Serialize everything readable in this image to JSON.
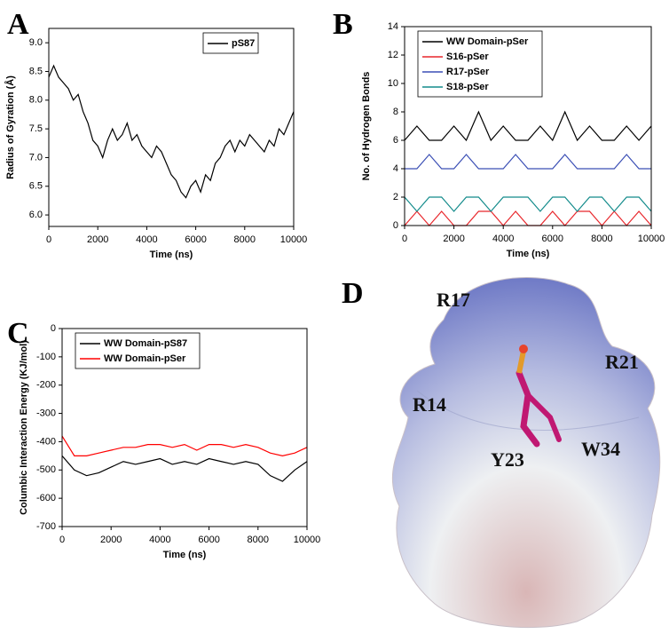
{
  "chart_data": [
    {
      "type": "line",
      "panel_label": "A",
      "xlabel": "Time (ns)",
      "ylabel": "Radius of Gyration (Å)",
      "xlim": [
        0,
        10000
      ],
      "xticks": [
        0,
        2000,
        4000,
        6000,
        8000,
        10000
      ],
      "ylim": [
        5.8,
        9.25
      ],
      "yticks": [
        {
          "value": 6,
          "label": "6.0"
        },
        6.5,
        {
          "value": 7,
          "label": "7.0"
        },
        7.5,
        {
          "value": 8,
          "label": "8.0"
        },
        8.5,
        {
          "value": 9,
          "label": "9.0"
        }
      ],
      "legend": "top-right",
      "x": [
        0,
        200,
        400,
        600,
        800,
        1000,
        1200,
        1400,
        1600,
        1800,
        2000,
        2200,
        2400,
        2600,
        2800,
        3000,
        3200,
        3400,
        3600,
        3800,
        4000,
        4200,
        4400,
        4600,
        4800,
        5000,
        5200,
        5400,
        5600,
        5800,
        6000,
        6200,
        6400,
        6600,
        6800,
        7000,
        7200,
        7400,
        7600,
        7800,
        8000,
        8200,
        8400,
        8600,
        8800,
        9000,
        9200,
        9400,
        9600,
        9800,
        10000
      ],
      "series": [
        {
          "name": "pS87",
          "color": "#000000",
          "values": [
            8.4,
            8.6,
            8.4,
            8.3,
            8.2,
            8.0,
            8.1,
            7.8,
            7.6,
            7.3,
            7.2,
            7.0,
            7.3,
            7.5,
            7.3,
            7.4,
            7.6,
            7.3,
            7.4,
            7.2,
            7.1,
            7.0,
            7.2,
            7.1,
            6.9,
            6.7,
            6.6,
            6.4,
            6.3,
            6.5,
            6.6,
            6.4,
            6.7,
            6.6,
            6.9,
            7.0,
            7.2,
            7.3,
            7.1,
            7.3,
            7.2,
            7.4,
            7.3,
            7.2,
            7.1,
            7.3,
            7.2,
            7.5,
            7.4,
            7.6,
            7.8
          ]
        }
      ]
    },
    {
      "type": "line",
      "panel_label": "B",
      "xlabel": "Time (ns)",
      "ylabel": "No. of Hydrogen Bonds",
      "xlim": [
        0,
        10000
      ],
      "xticks": [
        0,
        2000,
        4000,
        6000,
        8000,
        10000
      ],
      "ylim": [
        0,
        14
      ],
      "yticks": [
        0,
        2,
        4,
        6,
        8,
        10,
        12,
        14
      ],
      "legend": "top-left",
      "x": [
        0,
        500,
        1000,
        1500,
        2000,
        2500,
        3000,
        3500,
        4000,
        4500,
        5000,
        5500,
        6000,
        6500,
        7000,
        7500,
        8000,
        8500,
        9000,
        9500,
        10000
      ],
      "series": [
        {
          "name": "WW Domain-pSer",
          "color": "#000000",
          "values": [
            6,
            7,
            6,
            6,
            7,
            6,
            8,
            6,
            7,
            6,
            6,
            7,
            6,
            8,
            6,
            7,
            6,
            6,
            7,
            6,
            7
          ]
        },
        {
          "name": "S16-pSer",
          "color": "#e8262b",
          "values": [
            0,
            1,
            0,
            1,
            0,
            0,
            1,
            1,
            0,
            1,
            0,
            0,
            1,
            0,
            1,
            1,
            0,
            1,
            0,
            1,
            0
          ]
        },
        {
          "name": "R17-pSer",
          "color": "#3b4fb5",
          "values": [
            4,
            4,
            5,
            4,
            4,
            5,
            4,
            4,
            4,
            5,
            4,
            4,
            4,
            5,
            4,
            4,
            4,
            4,
            5,
            4,
            4
          ]
        },
        {
          "name": "S18-pSer",
          "color": "#138b8b",
          "values": [
            2,
            1,
            2,
            2,
            1,
            2,
            2,
            1,
            2,
            2,
            2,
            1,
            2,
            2,
            1,
            2,
            2,
            1,
            2,
            2,
            1
          ]
        }
      ]
    },
    {
      "type": "line",
      "panel_label": "C",
      "xlabel": "Time (ns)",
      "ylabel": "Columbic Interaction Energy (KJ/mol)",
      "xlim": [
        0,
        10000
      ],
      "xticks": [
        0,
        2000,
        4000,
        6000,
        8000,
        10000
      ],
      "ylim": [
        -700,
        0
      ],
      "yticks": [
        -700,
        -600,
        -500,
        -400,
        -300,
        -200,
        -100,
        0
      ],
      "legend": "top-left",
      "x": [
        0,
        500,
        1000,
        1500,
        2000,
        2500,
        3000,
        3500,
        4000,
        4500,
        5000,
        5500,
        6000,
        6500,
        7000,
        7500,
        8000,
        8500,
        9000,
        9500,
        10000
      ],
      "series": [
        {
          "name": "WW Domain-pS87",
          "color": "#000000",
          "values": [
            -450,
            -500,
            -520,
            -510,
            -490,
            -470,
            -480,
            -470,
            -460,
            -480,
            -470,
            -480,
            -460,
            -470,
            -480,
            -470,
            -480,
            -520,
            -540,
            -500,
            -470
          ]
        },
        {
          "name": "WW Domain-pSer",
          "color": "#ff0000",
          "values": [
            -380,
            -450,
            -450,
            -440,
            -430,
            -420,
            -420,
            -410,
            -410,
            -420,
            -410,
            -430,
            -410,
            -410,
            -420,
            -410,
            -420,
            -440,
            -450,
            -440,
            -420
          ]
        }
      ]
    }
  ],
  "structure": {
    "panel_label": "D",
    "residues": [
      "R17",
      "R21",
      "R14",
      "Y23",
      "W34"
    ]
  }
}
